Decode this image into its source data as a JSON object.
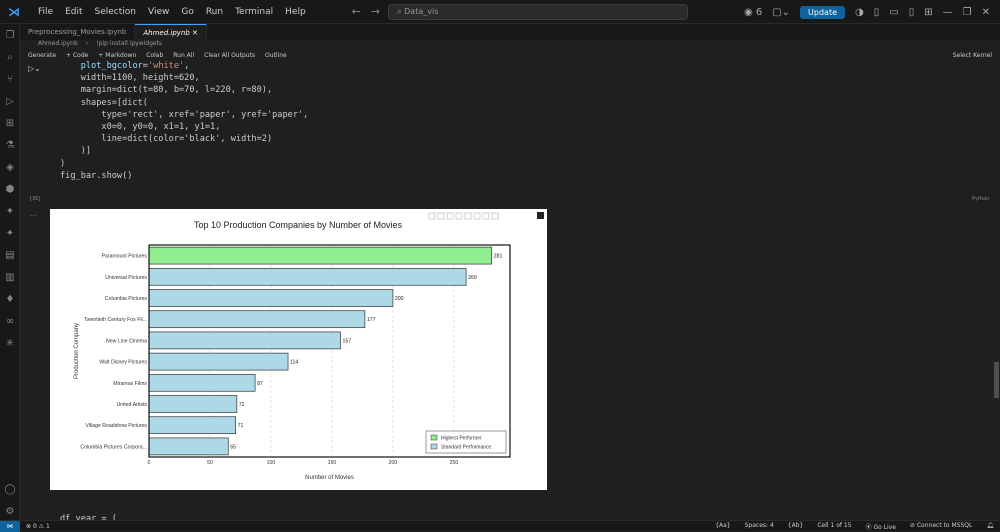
{
  "menu": [
    "File",
    "Edit",
    "Selection",
    "View",
    "Go",
    "Run",
    "Terminal",
    "Help"
  ],
  "search": {
    "value": "Data_vis"
  },
  "titlebar": {
    "notifications": "6",
    "update_label": "Update"
  },
  "tabs": [
    {
      "label": "Preprocessing_Movies.ipynb",
      "active": false
    },
    {
      "label": "Ahmed.ipynb",
      "active": true
    }
  ],
  "breadcrumbs": [
    "Ahmed.ipynb",
    "!pip install ipywidgets"
  ],
  "toolbar": {
    "generate": "Generate",
    "code": "+ Code",
    "markdown": "+ Markdown",
    "colab": "Colab",
    "run_all": "Run All",
    "clear_outputs": "Clear All Outputs",
    "outline": "Outline",
    "kernel": "Select Kernel"
  },
  "code_lines": [
    "    plot_bgcolor='white',",
    "    width=1100, height=620,",
    "    margin=dict(t=80, b=70, l=220, r=80),",
    "    shapes=[dict(",
    "        type='rect', xref='paper', yref='paper',",
    "        x0=0, y0=0, x1=1, y1=1,",
    "        line=dict(color='black', width=2)",
    "    )]",
    ")",
    "",
    "fig_bar.show()"
  ],
  "cell": {
    "exec_count": "[36]",
    "language": "Python"
  },
  "next_code": "df_year = (",
  "chart_data": {
    "type": "bar",
    "orientation": "horizontal",
    "title": "Top 10 Production Companies by Number of Movies",
    "xlabel": "Number of Movies",
    "ylabel": "Production Company",
    "categories": [
      "Paramount Pictures",
      "Universal Pictures",
      "Columbia Pictures",
      "Twentieth Century Fox Fil...",
      "New Line Cinema",
      "Walt Disney Pictures",
      "Miramax Films",
      "United Artists",
      "Village Roadshow Pictures",
      "Columbia Pictures Corpora..."
    ],
    "values": [
      281,
      260,
      200,
      177,
      157,
      114,
      87,
      72,
      71,
      65
    ],
    "highlight": [
      true,
      false,
      false,
      false,
      false,
      false,
      false,
      false,
      false,
      false
    ],
    "xlim": [
      0,
      296
    ],
    "xticks": [
      0,
      50,
      100,
      150,
      200,
      250
    ],
    "legend": {
      "placement": "bottom-right",
      "entries": [
        "Highest Performer",
        "Standard Performance"
      ]
    },
    "colors": {
      "highlight": "#90ee90",
      "standard": "#add8e6"
    }
  },
  "status": {
    "errors": "0",
    "warnings": "1",
    "spaces": "Spaces: 4",
    "cell": "Cell 1 of 15",
    "go_live": "Go Live",
    "mssql": "Connect to MSSQL",
    "a1": "{Aa}",
    "a2": "{Ab}"
  }
}
